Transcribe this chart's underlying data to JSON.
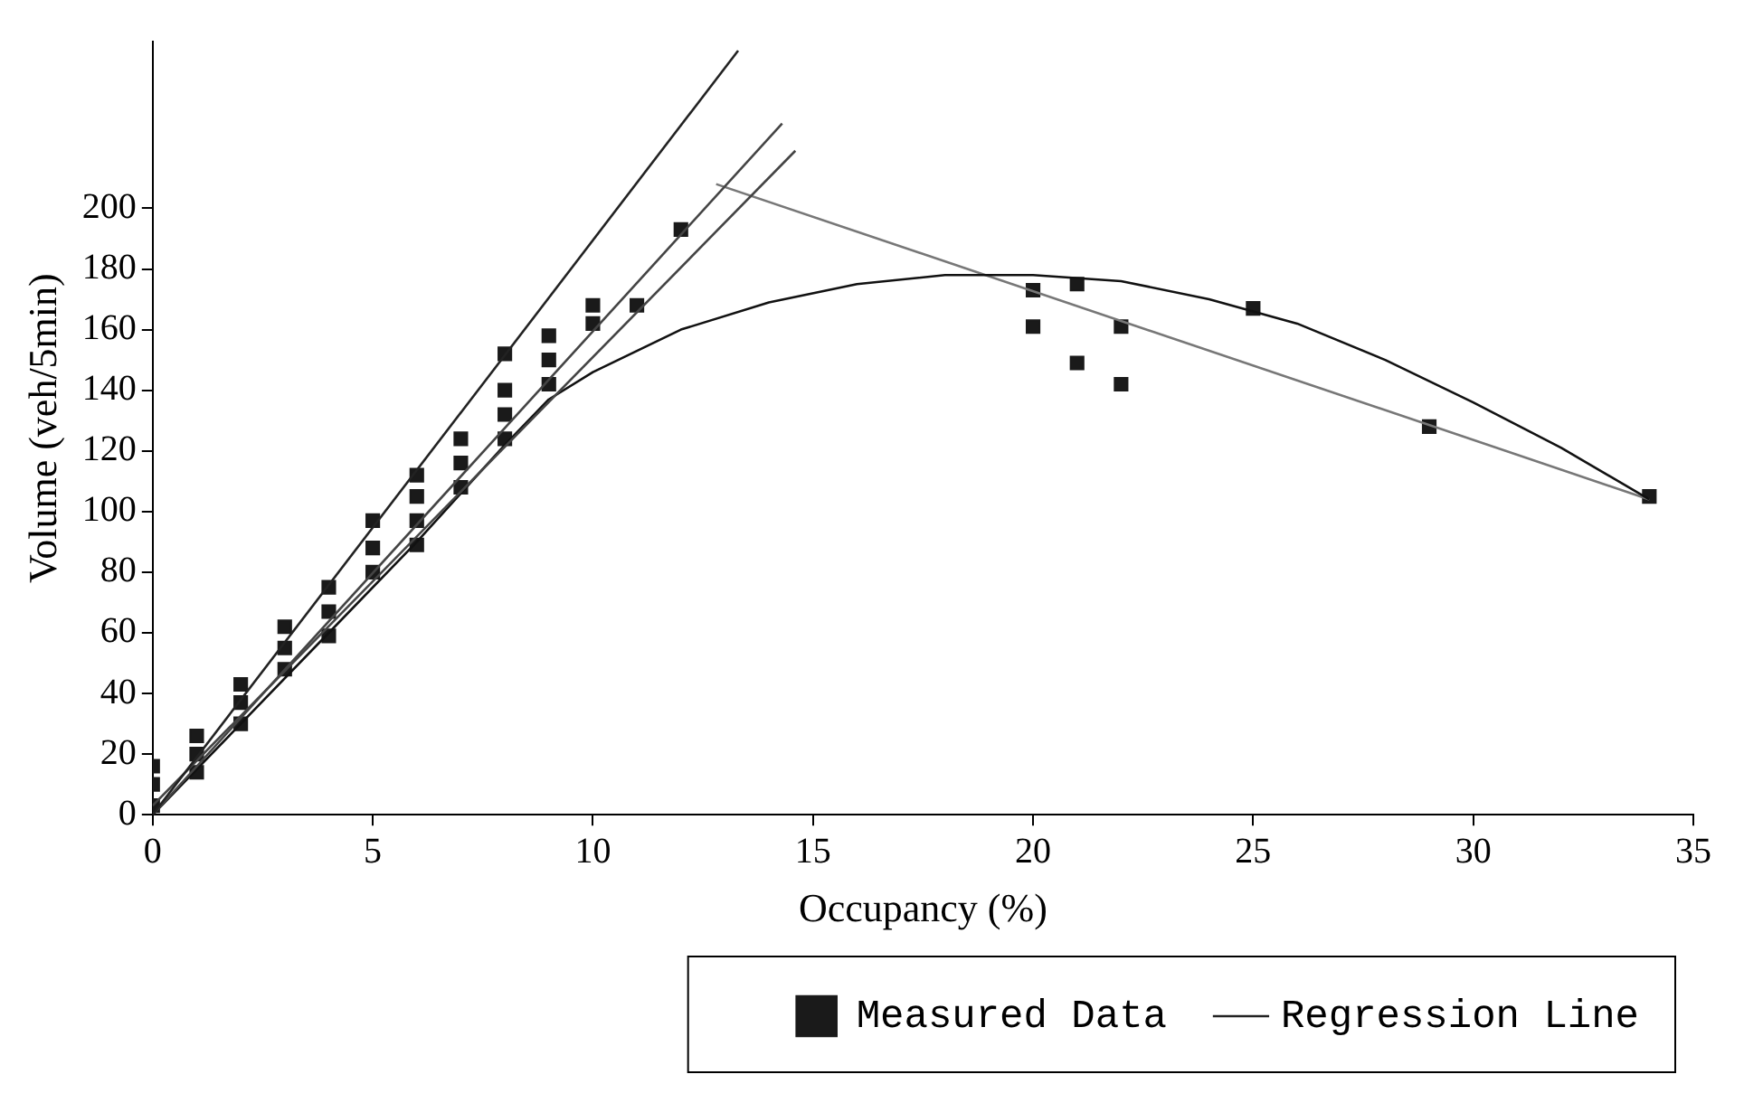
{
  "chart_data": {
    "type": "scatter",
    "xlabel": "Occupancy (%)",
    "ylabel": "Volume (veh/5min)",
    "xlim": [
      0,
      35
    ],
    "xticks": [
      0,
      5,
      10,
      15,
      20,
      25,
      30,
      35
    ],
    "ylim": [
      0,
      255
    ],
    "yticks": [
      0,
      20,
      40,
      60,
      80,
      100,
      120,
      140,
      160,
      180,
      200
    ],
    "grid": false,
    "legend": "bottom",
    "marker": "square",
    "series": [
      {
        "name": "Measured Data",
        "type": "scatter",
        "color": "#1a1a1a",
        "x": [
          0,
          0,
          0,
          1,
          1,
          1,
          2,
          2,
          2,
          3,
          3,
          3,
          4,
          4,
          4,
          5,
          5,
          5,
          6,
          6,
          6,
          6,
          7,
          7,
          7,
          8,
          8,
          8,
          8,
          9,
          9,
          9,
          10,
          10,
          11,
          12,
          20,
          20,
          21,
          21,
          22,
          22,
          25,
          29,
          34
        ],
        "values": [
          3,
          10,
          16,
          14,
          20,
          26,
          30,
          37,
          43,
          48,
          55,
          62,
          59,
          67,
          75,
          80,
          88,
          97,
          89,
          97,
          105,
          112,
          108,
          116,
          124,
          124,
          132,
          140,
          152,
          142,
          150,
          158,
          162,
          168,
          168,
          193,
          173,
          161,
          175,
          149,
          161,
          142,
          167,
          128,
          105
        ]
      },
      {
        "name": "Regression Line",
        "type": "line",
        "marker": "none",
        "color": "#222222",
        "x": [
          0,
          13.3
        ],
        "values": [
          0,
          252
        ]
      },
      {
        "type": "line",
        "marker": "none",
        "color": "#444444",
        "x": [
          0,
          14.3
        ],
        "values": [
          0,
          228
        ]
      },
      {
        "type": "line",
        "marker": "none",
        "color": "#444444",
        "x": [
          0,
          14.6
        ],
        "values": [
          3,
          219
        ]
      },
      {
        "type": "line",
        "marker": "none",
        "color": "#111111",
        "x": [
          0,
          2,
          4,
          6,
          8,
          9,
          10,
          12,
          14,
          16,
          18,
          20,
          22,
          24,
          26,
          28,
          30,
          32,
          34
        ],
        "values": [
          0,
          30,
          60,
          90,
          122,
          137,
          146,
          160,
          169,
          175,
          178,
          178,
          176,
          170,
          162,
          150,
          136,
          121,
          104
        ]
      },
      {
        "type": "line",
        "marker": "none",
        "color": "#777777",
        "x": [
          12.8,
          34
        ],
        "values": [
          208,
          104
        ]
      }
    ]
  }
}
